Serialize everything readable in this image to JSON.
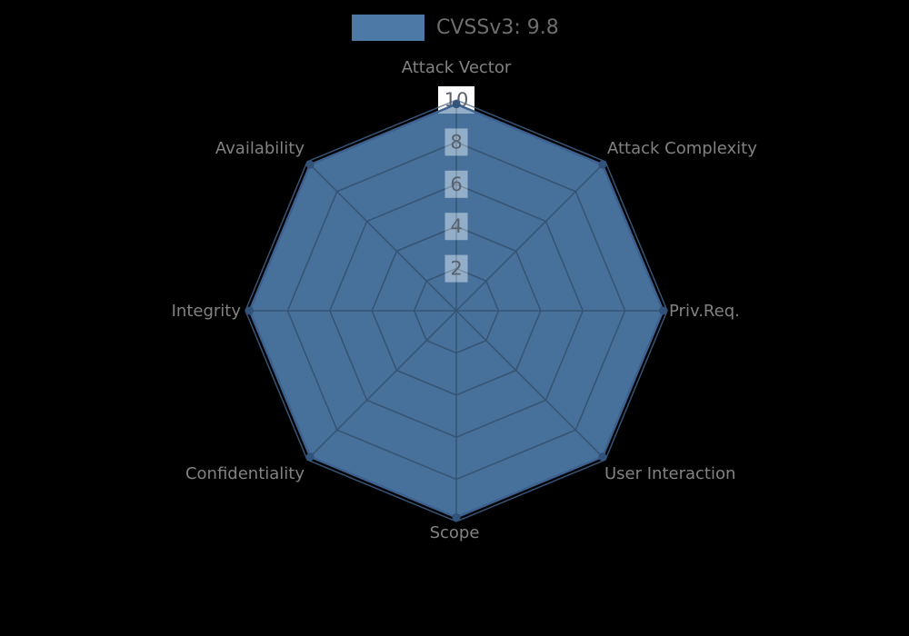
{
  "page": {
    "background_color": "#000000"
  },
  "legend": {
    "label": "CVSSv3: 9.8",
    "swatch_color": "#4d79a7",
    "text_color": "#6e6e6e"
  },
  "chart_data": {
    "type": "radar",
    "title": "",
    "categories": [
      "Attack Vector",
      "Attack Complexity",
      "Priv.Req.",
      "User Interaction",
      "Scope",
      "Confidentiality",
      "Integrity",
      "Availability"
    ],
    "series": [
      {
        "name": "CVSSv3: 9.8",
        "values": [
          9.8,
          9.8,
          9.8,
          9.8,
          9.8,
          9.8,
          9.8,
          9.8
        ],
        "fill_color": "#4d79a7",
        "outline_color": "#3d6190",
        "marker_color": "#315379"
      }
    ],
    "ticks": [
      2,
      4,
      6,
      8,
      10
    ],
    "rmax": 10,
    "grid_shape": "polygon",
    "grid_on": true,
    "grid_color": "#355473",
    "tick_text_color": "#59616c",
    "tick_box_color": "#ffffff",
    "axis_label_color": "#828282",
    "legend_position": "top"
  }
}
